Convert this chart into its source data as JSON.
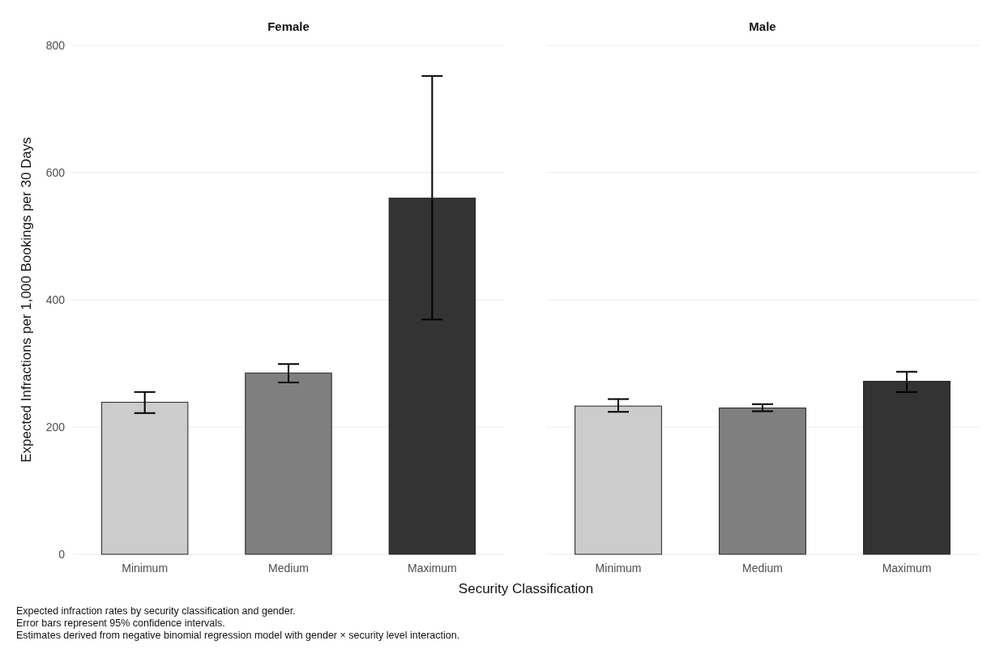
{
  "chart_data": [
    {
      "type": "bar",
      "title": "Female",
      "ylabel": "Expected Infractions per 1,000 Bookings per 30 Days",
      "xlabel": "Security Classification",
      "categories": [
        "Minimum",
        "Medium",
        "Maximum"
      ],
      "values": [
        239,
        285,
        560
      ],
      "colors": [
        "#cccccc",
        "#7f7f7f",
        "#333333"
      ],
      "errors": [
        [
          222,
          255
        ],
        [
          270,
          299
        ],
        [
          369,
          752
        ]
      ],
      "ylim": [
        0,
        800
      ],
      "yticks": [
        0,
        200,
        400,
        600,
        800
      ],
      "grid": "y",
      "annotations": [
        "Expected infraction rates by security classification and gender.",
        "Error bars represent 95% confidence intervals.",
        "Estimates derived from negative binomial regression model with gender × security level interaction."
      ]
    },
    {
      "type": "bar",
      "title": "Male",
      "categories": [
        "Minimum",
        "Medium",
        "Maximum"
      ],
      "values": [
        233,
        230,
        272
      ],
      "colors": [
        "#cccccc",
        "#7f7f7f",
        "#333333"
      ],
      "errors": [
        [
          224,
          244
        ],
        [
          225,
          236
        ],
        [
          255,
          287
        ]
      ],
      "ylim": [
        0,
        800
      ],
      "yticks": [
        0,
        200,
        400,
        600,
        800
      ],
      "grid": "y",
      "tick_labels": "x"
    }
  ]
}
